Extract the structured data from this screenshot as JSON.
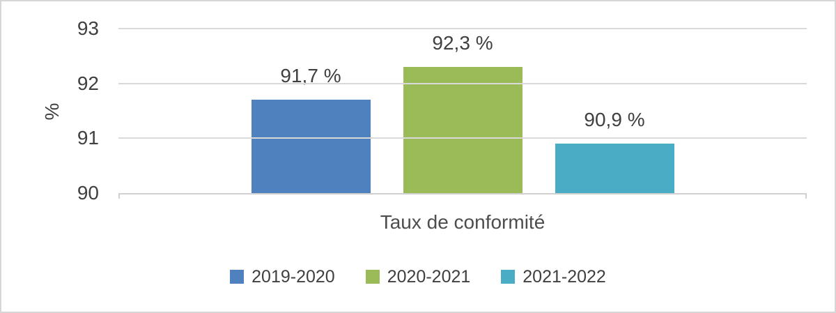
{
  "chart_data": {
    "type": "bar",
    "title": "",
    "xlabel": "Taux de conformité",
    "ylabel": "%",
    "ylim": [
      90,
      93
    ],
    "yticks": [
      90,
      91,
      92,
      93
    ],
    "grid": true,
    "legend_position": "bottom",
    "categories": [
      "Taux de conformité"
    ],
    "series": [
      {
        "name": "2019-2020",
        "values": [
          91.7
        ],
        "data_label": "91,7 %",
        "color": "#4E81BD"
      },
      {
        "name": "2020-2021",
        "values": [
          92.3
        ],
        "data_label": "92,3 %",
        "color": "#9BBB59"
      },
      {
        "name": "2021-2022",
        "values": [
          90.9
        ],
        "data_label": "90,9 %",
        "color": "#4BACC6"
      }
    ]
  },
  "colors": {
    "gridline": "#D9D9D9",
    "axis_line": "#D0D0D0",
    "text": "#404040",
    "frame_border": "#D6D6D6",
    "background": "#FFFFFF"
  }
}
